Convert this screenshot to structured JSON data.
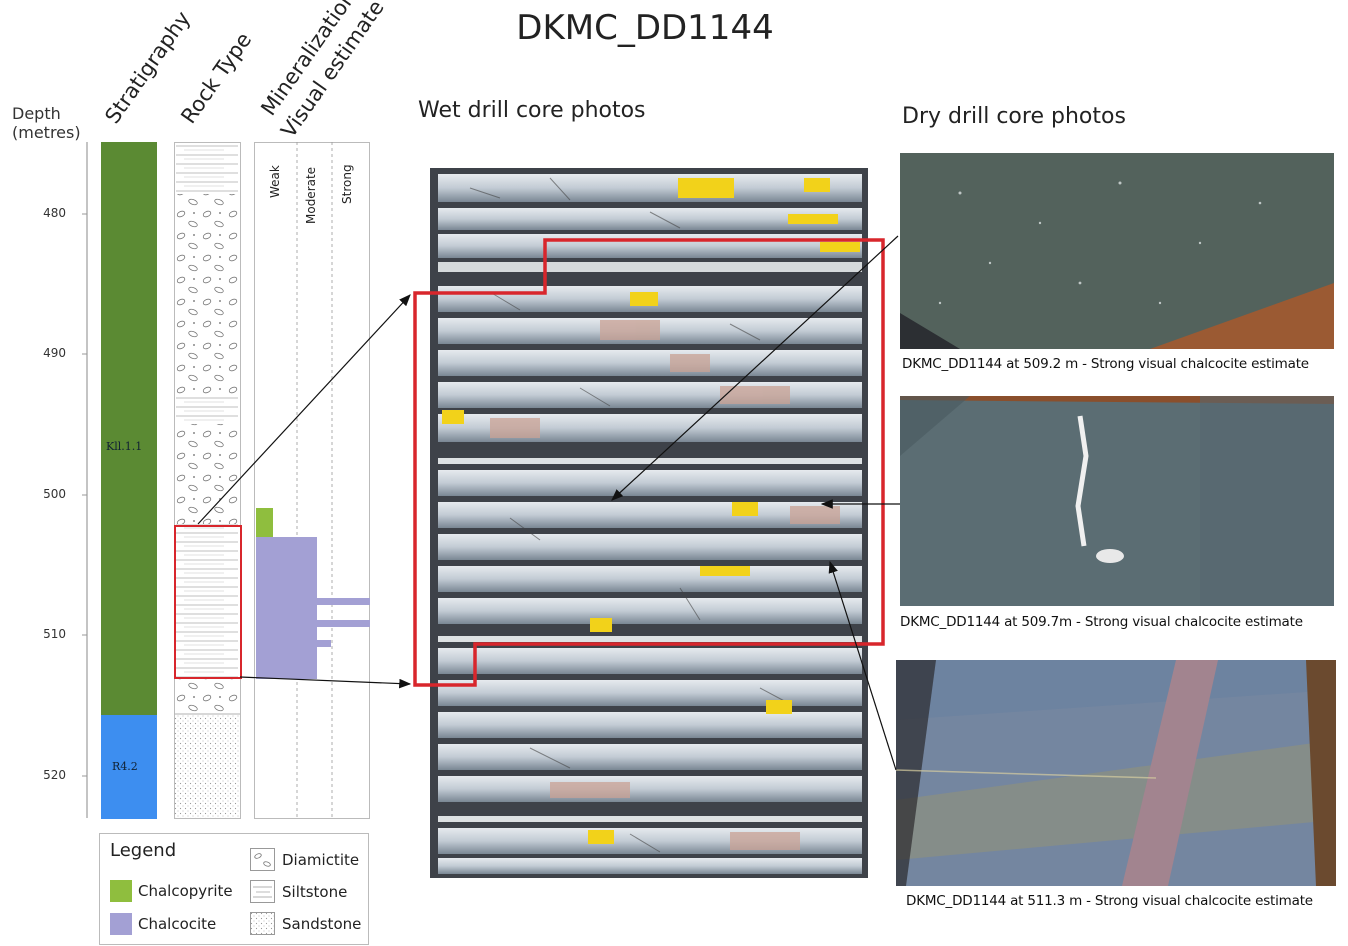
{
  "title": "DKMC_DD1144",
  "column_headers": {
    "depth": "Depth\n(metres)",
    "depth_line1": "Depth",
    "depth_line2": "(metres)",
    "stratigraphy": "Stratigraphy",
    "rock_type": "Rock Type",
    "mineralization_1": "Mineralization",
    "mineralization_2": "Visual estimate"
  },
  "depth_ticks": [
    "480",
    "490",
    "500",
    "510",
    "520"
  ],
  "stratigraphy": [
    {
      "label": "Kll.1.1",
      "color": "#5b8a33"
    },
    {
      "label": "R4.2",
      "color": "#3d8ef0"
    }
  ],
  "mineralization_levels": [
    "Weak",
    "Moderate",
    "Strong"
  ],
  "sections": {
    "wet": "Wet drill core photos",
    "dry": "Dry drill core photos"
  },
  "captions": [
    "DKMC_DD1144 at 509.2 m - Strong visual chalcocite estimate",
    "DKMC_DD1144 at 509.7m - Strong visual chalcocite estimate",
    "DKMC_DD1144 at 511.3 m - Strong visual chalcocite estimate"
  ],
  "legend": {
    "title": "Legend",
    "items": [
      {
        "label": "Chalcopyrite",
        "color": "#8fbe3e"
      },
      {
        "label": "Chalcocite",
        "color": "#a3a0d4"
      },
      {
        "label": "Diamictite"
      },
      {
        "label": "Siltstone"
      },
      {
        "label": "Sandstone"
      }
    ]
  },
  "colors": {
    "highlight": "#d8262c",
    "chalcopyrite": "#8fbe3e",
    "chalcocite": "#a3a0d4"
  }
}
